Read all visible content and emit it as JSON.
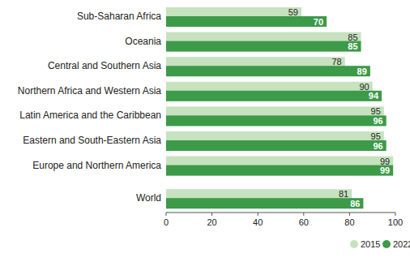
{
  "chart_data": {
    "type": "bar",
    "orientation": "horizontal",
    "categories": [
      "Sub-Saharan Africa",
      "Oceania",
      "Central and Southern Asia",
      "Northern Africa and Western Asia",
      "Latin America and the Caribbean",
      "Eastern and South-Eastern Asia",
      "Europe and Northern America",
      "World"
    ],
    "series": [
      {
        "name": "2015",
        "color": "#c6e2bf",
        "values": [
          59,
          85,
          78,
          90,
          95,
          95,
          99,
          81
        ]
      },
      {
        "name": "2022",
        "color": "#3c9a48",
        "values": [
          70,
          85,
          89,
          94,
          96,
          96,
          99,
          86
        ]
      }
    ],
    "xlim": [
      0,
      100
    ],
    "xticks": [
      0,
      20,
      40,
      60,
      80,
      100
    ],
    "grid": false,
    "data_labels": true,
    "legend": "bottom-right"
  }
}
